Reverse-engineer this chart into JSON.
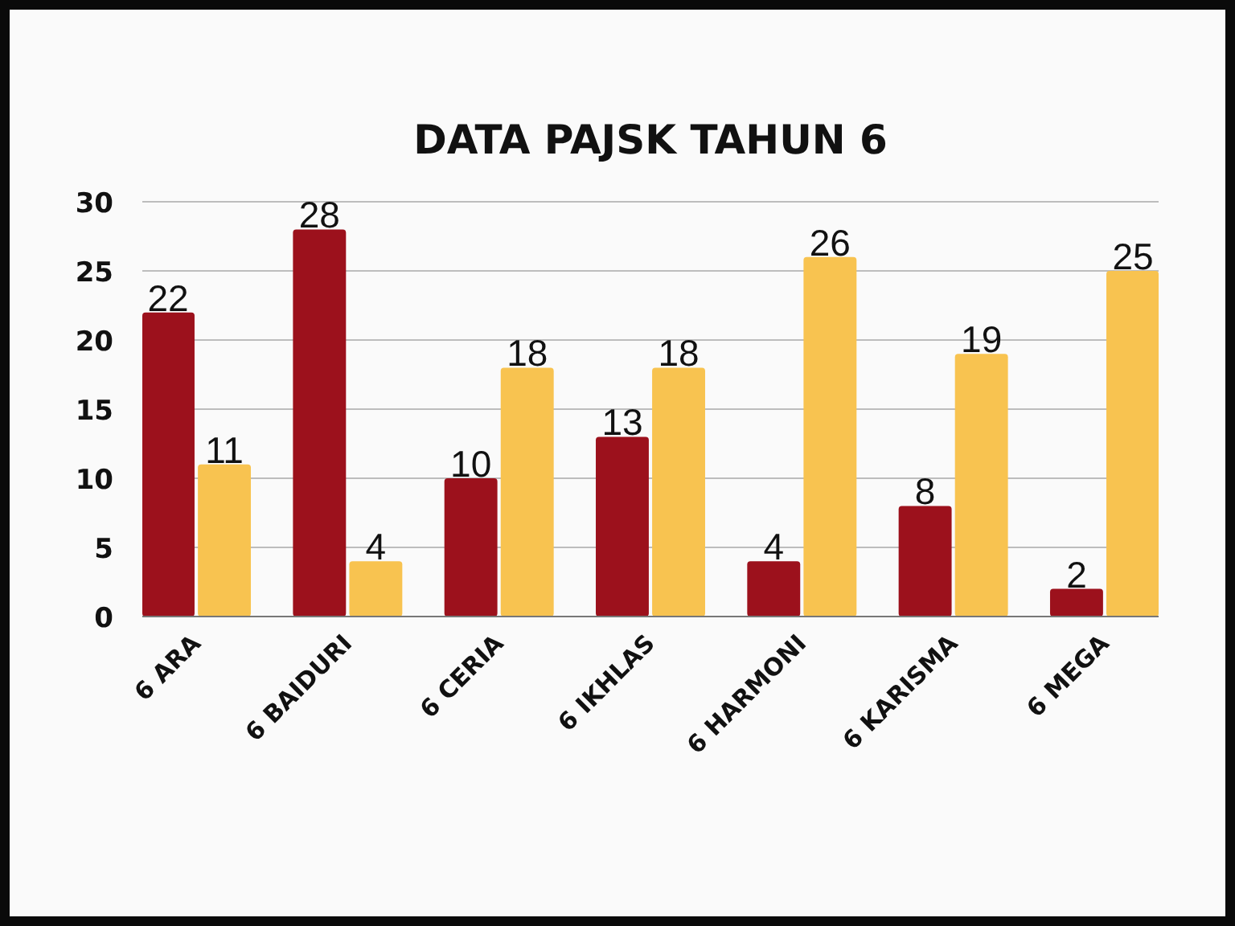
{
  "chart_data": {
    "type": "bar",
    "title": "DATA PAJSK TAHUN 6",
    "categories": [
      "6 ARA",
      "6 BAIDURI",
      "6 CERIA",
      "6 IKHLAS",
      "6 HARMONI",
      "6 KARISMA",
      "6 MEGA"
    ],
    "series": [
      {
        "color": "#9c111c",
        "values": [
          22,
          28,
          10,
          13,
          4,
          8,
          2
        ]
      },
      {
        "color": "#f8c350",
        "values": [
          11,
          4,
          18,
          18,
          26,
          19,
          25
        ]
      }
    ],
    "ylim": [
      0,
      30
    ],
    "yticks": [
      0,
      5,
      10,
      15,
      20,
      25,
      30
    ],
    "grid": "y",
    "data_labels": true
  }
}
